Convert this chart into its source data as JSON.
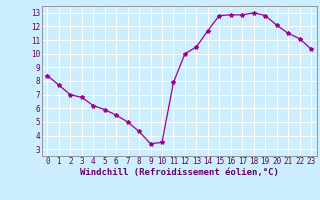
{
  "x": [
    0,
    1,
    2,
    3,
    4,
    5,
    6,
    7,
    8,
    9,
    10,
    11,
    12,
    13,
    14,
    15,
    16,
    17,
    18,
    19,
    20,
    21,
    22,
    23
  ],
  "y": [
    8.4,
    7.7,
    7.0,
    6.8,
    6.2,
    5.9,
    5.5,
    5.0,
    4.3,
    3.4,
    3.5,
    7.9,
    10.0,
    10.5,
    11.7,
    12.8,
    12.85,
    12.85,
    13.0,
    12.8,
    12.1,
    11.5,
    11.1,
    10.35
  ],
  "line_color": "#990099",
  "marker": "*",
  "marker_size": 3,
  "bg_color": "#cceeff",
  "grid_color": "#ffffff",
  "xlabel": "Windchill (Refroidissement éolien,°C)",
  "xlabel_fontsize": 6.5,
  "xlim": [
    -0.5,
    23.5
  ],
  "ylim": [
    2.5,
    13.5
  ],
  "yticks": [
    3,
    4,
    5,
    6,
    7,
    8,
    9,
    10,
    11,
    12,
    13
  ],
  "xticks": [
    0,
    1,
    2,
    3,
    4,
    5,
    6,
    7,
    8,
    9,
    10,
    11,
    12,
    13,
    14,
    15,
    16,
    17,
    18,
    19,
    20,
    21,
    22,
    23
  ],
  "tick_fontsize": 5.5,
  "spine_color": "#888888",
  "xlabel_color": "#660066",
  "tick_color": "#660066",
  "line_width": 0.9
}
